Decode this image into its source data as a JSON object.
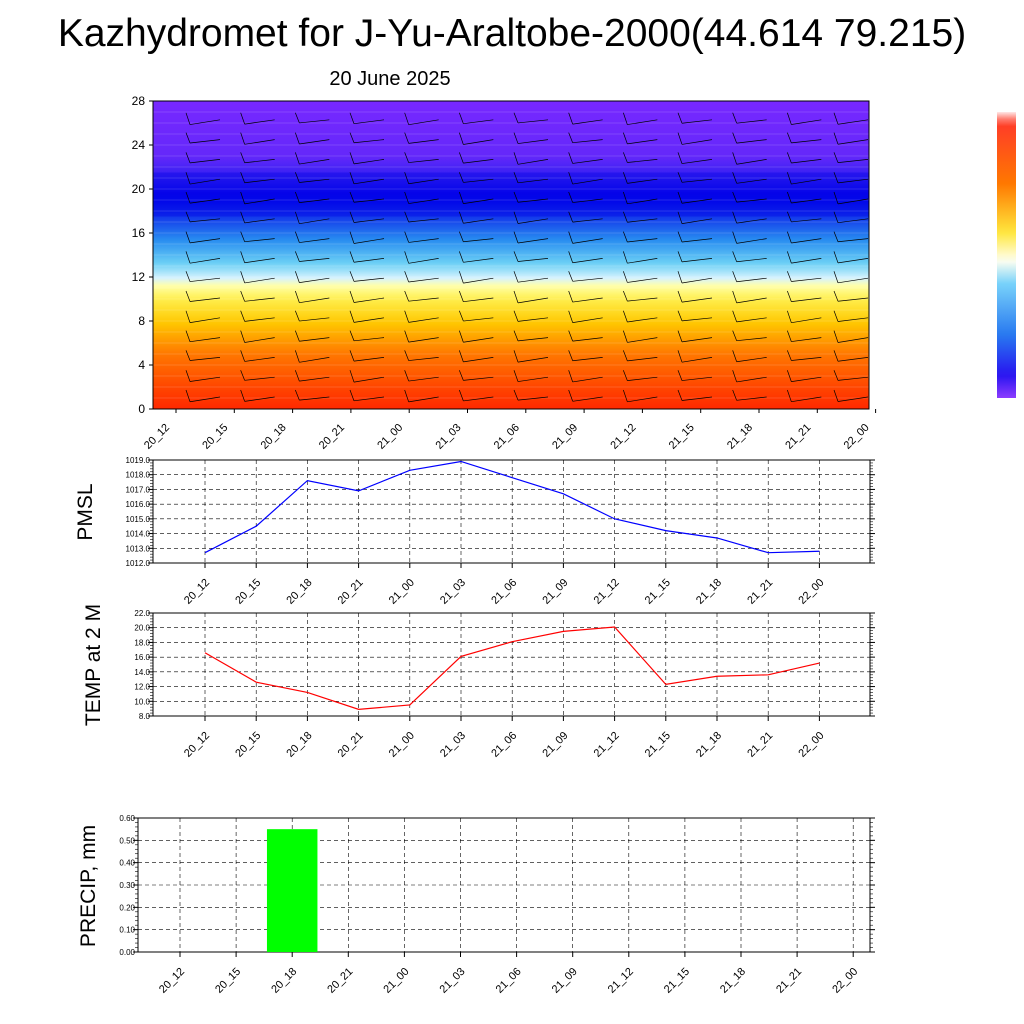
{
  "title": "Kazhydromet for J-Yu-Araltobe-2000(44.614 79.215)",
  "subtitle": "20 June 2025",
  "colors": {
    "pmsl_line": "#0000ff",
    "temp_line": "#ff0000",
    "precip_bar": "#00ff00",
    "grid": "#000000"
  },
  "chart_data": [
    {
      "type": "heatmap",
      "name": "vertical-profile",
      "title": "",
      "xlabel": "",
      "ylabel": "",
      "x": [
        "20_12",
        "20_15",
        "20_18",
        "20_21",
        "21_00",
        "21_03",
        "21_06",
        "21_09",
        "21_12",
        "21_15",
        "21_18",
        "21_21",
        "22_00"
      ],
      "ylim": [
        0,
        28
      ],
      "yticks": [
        0,
        4,
        8,
        12,
        16,
        20,
        24,
        28
      ],
      "color_scale": "blue-cyan-white-yellow-red",
      "overlay": "wind barbs",
      "grid": false
    },
    {
      "type": "line",
      "name": "pmsl",
      "ylabel": "PMSL",
      "x": [
        "20_12",
        "20_15",
        "20_18",
        "20_21",
        "21_00",
        "21_03",
        "21_06",
        "21_09",
        "21_12",
        "21_15",
        "21_18",
        "21_21",
        "22_00"
      ],
      "series": [
        {
          "values": [
            1012.7,
            1014.5,
            1017.6,
            1016.9,
            1018.3,
            1018.9,
            1017.8,
            1016.7,
            1015.0,
            1014.2,
            1013.7,
            1012.7,
            1012.8
          ]
        }
      ],
      "ylim": [
        1012.0,
        1019.0
      ],
      "yticks": [
        "1012.0",
        "1013.0",
        "1014.0",
        "1015.0",
        "1016.0",
        "1017.0",
        "1018.0",
        "1019.0"
      ],
      "grid": true
    },
    {
      "type": "line",
      "name": "temp",
      "ylabel": "TEMP at 2 M",
      "x": [
        "20_12",
        "20_15",
        "20_18",
        "20_21",
        "21_00",
        "21_03",
        "21_06",
        "21_09",
        "21_12",
        "21_15",
        "21_18",
        "21_21",
        "22_00"
      ],
      "series": [
        {
          "values": [
            16.6,
            12.6,
            11.2,
            8.9,
            9.5,
            16.1,
            18.1,
            19.5,
            20.1,
            12.3,
            13.4,
            13.6,
            15.2
          ]
        }
      ],
      "ylim": [
        8.0,
        22.0
      ],
      "yticks": [
        "8.0",
        "10.0",
        "12.0",
        "14.0",
        "16.0",
        "18.0",
        "20.0",
        "22.0"
      ],
      "grid": true
    },
    {
      "type": "bar",
      "name": "precip",
      "ylabel": "PRECIP, mm",
      "categories": [
        "20_12",
        "20_15",
        "20_18",
        "20_21",
        "21_00",
        "21_03",
        "21_06",
        "21_09",
        "21_12",
        "21_15",
        "21_18",
        "21_21",
        "22_00"
      ],
      "values": [
        0,
        0,
        0.55,
        0,
        0,
        0,
        0,
        0,
        0,
        0,
        0,
        0,
        0
      ],
      "ylim": [
        0,
        0.6
      ],
      "yticks": [
        "0.00",
        "0.10",
        "0.20",
        "0.30",
        "0.40",
        "0.50",
        "0.60"
      ],
      "grid": true
    }
  ]
}
